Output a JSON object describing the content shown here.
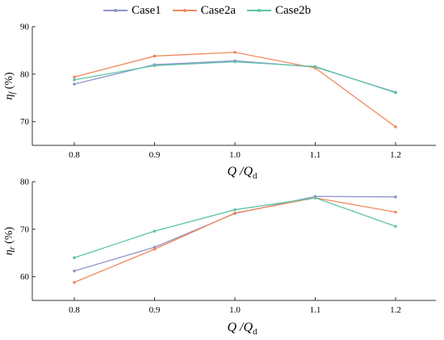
{
  "legend": [
    {
      "name": "Case1",
      "color": "#8f95cc"
    },
    {
      "name": "Case2a",
      "color": "#f08a5d"
    },
    {
      "name": "Case2b",
      "color": "#5cc4a8"
    }
  ],
  "chart_data": [
    {
      "type": "line",
      "x": [
        0.8,
        0.9,
        1.0,
        1.1,
        1.2
      ],
      "xticks": [
        "0.8",
        "0.9",
        "1.0",
        "1.1",
        "1.2"
      ],
      "yticks": [
        "70",
        "80",
        "90"
      ],
      "ylim": [
        65,
        90
      ],
      "ylabel": "η_f (%)",
      "xlabel": "Q / Q_d",
      "grid": false,
      "series": [
        {
          "name": "Case1",
          "color": "#8f95cc",
          "values": [
            77.9,
            82.0,
            82.8,
            81.5,
            76.2
          ]
        },
        {
          "name": "Case2a",
          "color": "#f08a5d",
          "values": [
            79.4,
            83.8,
            84.6,
            81.3,
            68.9
          ]
        },
        {
          "name": "Case2b",
          "color": "#5cc4a8",
          "values": [
            78.8,
            81.8,
            82.6,
            81.6,
            76.1
          ]
        }
      ]
    },
    {
      "type": "line",
      "x": [
        0.8,
        0.9,
        1.0,
        1.1,
        1.2
      ],
      "xticks": [
        "0.8",
        "0.9",
        "1.0",
        "1.1",
        "1.2"
      ],
      "yticks": [
        "60",
        "70",
        "80"
      ],
      "ylim": [
        55,
        80
      ],
      "ylabel": "η_r (%)",
      "xlabel": "Q / Q_d",
      "grid": false,
      "series": [
        {
          "name": "Case1",
          "color": "#8f95cc",
          "values": [
            61.2,
            66.2,
            73.3,
            76.9,
            76.8
          ]
        },
        {
          "name": "Case2a",
          "color": "#f08a5d",
          "values": [
            58.8,
            65.8,
            73.4,
            76.6,
            73.6
          ]
        },
        {
          "name": "Case2b",
          "color": "#5cc4a8",
          "values": [
            64.0,
            69.6,
            74.1,
            76.6,
            70.6
          ]
        }
      ]
    }
  ]
}
